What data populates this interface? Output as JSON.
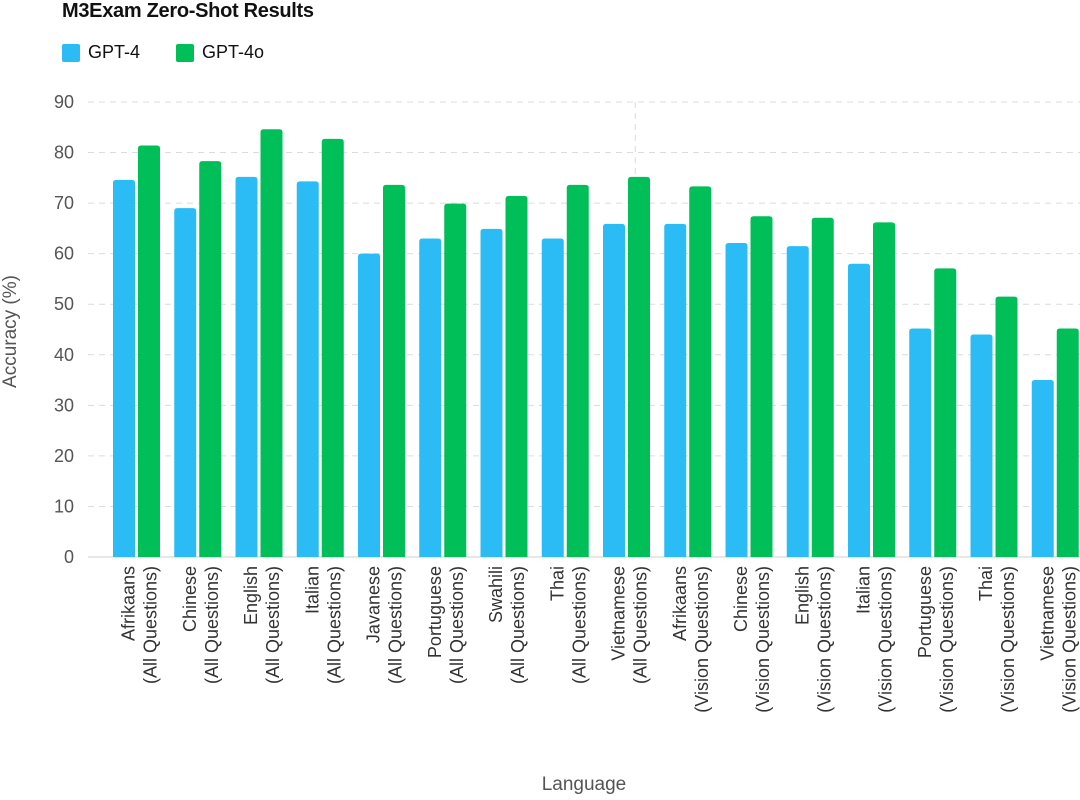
{
  "chart_data": {
    "type": "bar",
    "title": "M3Exam Zero-Shot Results",
    "xlabel": "Language",
    "ylabel": "Accuracy (%)",
    "ylim": [
      0,
      90
    ],
    "yticks": [
      "0",
      "10",
      "20",
      "30",
      "40",
      "50",
      "60",
      "70",
      "80",
      "90"
    ],
    "grid": true,
    "legend_position": "top-left",
    "categories": [
      [
        "Afrikaans",
        "(All Questions)"
      ],
      [
        "Chinese",
        "(All Questions)"
      ],
      [
        "English",
        "(All Questions)"
      ],
      [
        "Italian",
        "(All Questions)"
      ],
      [
        "Javanese",
        "(All Questions)"
      ],
      [
        "Portuguese",
        "(All Questions)"
      ],
      [
        "Swahili",
        "(All Questions)"
      ],
      [
        "Thai",
        "(All Questions)"
      ],
      [
        "Vietnamese",
        "(All Questions)"
      ],
      [
        "Afrikaans",
        "(Vision Questions)"
      ],
      [
        "Chinese",
        "(Vision Questions)"
      ],
      [
        "English",
        "(Vision Questions)"
      ],
      [
        "Italian",
        "(Vision Questions)"
      ],
      [
        "Portuguese",
        "(Vision Questions)"
      ],
      [
        "Thai",
        "(Vision Questions)"
      ],
      [
        "Vietnamese",
        "(Vision Questions)"
      ]
    ],
    "series": [
      {
        "name": "GPT-4",
        "color": "#2cbcf5",
        "values": [
          74.6,
          69.0,
          75.2,
          74.3,
          60.0,
          63.0,
          64.9,
          63.0,
          65.9,
          65.9,
          62.1,
          61.5,
          58.0,
          45.2,
          44.0,
          35.0
        ]
      },
      {
        "name": "GPT-4o",
        "color": "#00bf58",
        "values": [
          81.4,
          78.3,
          84.6,
          82.7,
          73.6,
          69.9,
          71.4,
          73.6,
          75.2,
          73.3,
          67.4,
          67.1,
          66.2,
          57.1,
          51.5,
          45.2
        ]
      }
    ],
    "separator_after_index": 8
  }
}
